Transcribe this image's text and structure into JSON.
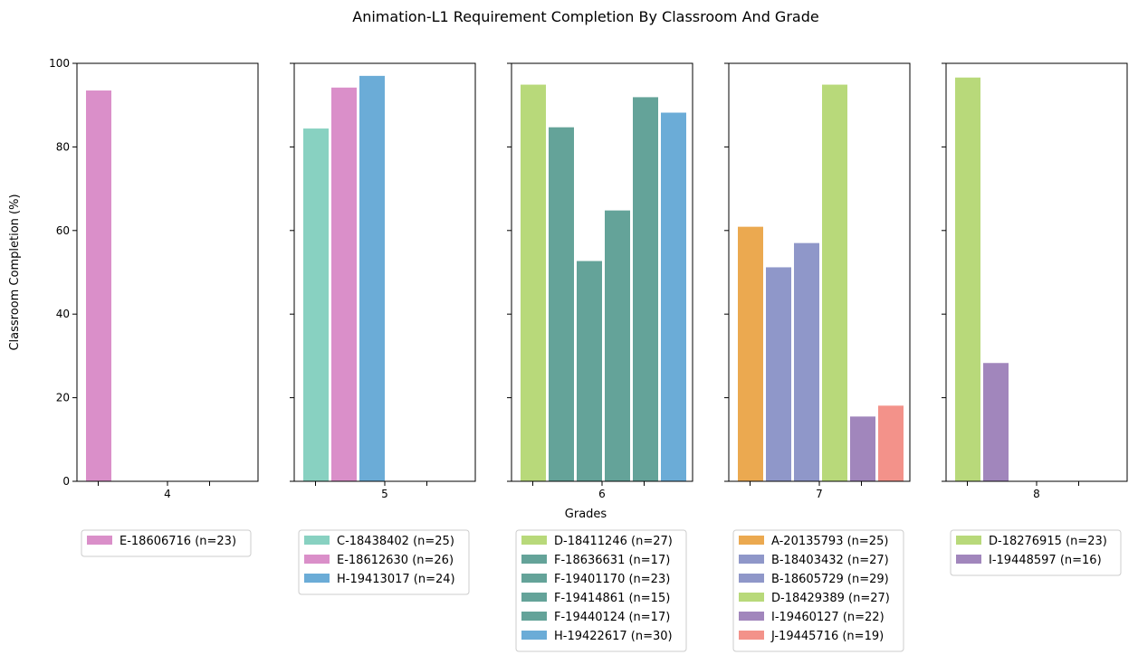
{
  "chart_data": {
    "type": "bar",
    "title": "Animation-L1 Requirement Completion By Classroom And Grade",
    "xlabel": "Grades",
    "ylabel": "Classroom Completion (%)",
    "ylim": [
      0,
      100
    ],
    "yticks": [
      0,
      20,
      40,
      60,
      80,
      100
    ],
    "grid": false,
    "legend_placement": "below each panel",
    "panels": [
      {
        "grade": "4",
        "bars": [
          {
            "name": "E-18606716 (n=23)",
            "value": 93.5,
            "color": "#DA8FC9"
          }
        ]
      },
      {
        "grade": "5",
        "bars": [
          {
            "name": "C-18438402 (n=25)",
            "value": 84.4,
            "color": "#88D1C1"
          },
          {
            "name": "E-18612630 (n=26)",
            "value": 94.2,
            "color": "#DA8FC9"
          },
          {
            "name": "H-19413017 (n=24)",
            "value": 97.0,
            "color": "#6BACD7"
          }
        ]
      },
      {
        "grade": "6",
        "bars": [
          {
            "name": "D-18411246 (n=27)",
            "value": 94.9,
            "color": "#B8D97A"
          },
          {
            "name": "F-18636631 (n=17)",
            "value": 84.7,
            "color": "#64A399"
          },
          {
            "name": "F-19401170 (n=23)",
            "value": 52.7,
            "color": "#64A399"
          },
          {
            "name": "F-19414861 (n=15)",
            "value": 64.8,
            "color": "#64A399"
          },
          {
            "name": "F-19440124 (n=17)",
            "value": 91.9,
            "color": "#64A399"
          },
          {
            "name": "H-19422617 (n=30)",
            "value": 88.2,
            "color": "#6BACD7"
          }
        ]
      },
      {
        "grade": "7",
        "bars": [
          {
            "name": "A-20135793 (n=25)",
            "value": 60.9,
            "color": "#EBA950"
          },
          {
            "name": "B-18403432 (n=27)",
            "value": 51.2,
            "color": "#8F97C9"
          },
          {
            "name": "B-18605729 (n=29)",
            "value": 57.0,
            "color": "#8F97C9"
          },
          {
            "name": "D-18429389 (n=27)",
            "value": 94.9,
            "color": "#B8D97A"
          },
          {
            "name": "I-19460127 (n=22)",
            "value": 15.5,
            "color": "#A186BC"
          },
          {
            "name": "J-19445716 (n=19)",
            "value": 18.1,
            "color": "#F3928A"
          }
        ]
      },
      {
        "grade": "8",
        "bars": [
          {
            "name": "D-18276915 (n=23)",
            "value": 96.6,
            "color": "#B8D97A"
          },
          {
            "name": "I-19448597 (n=16)",
            "value": 28.3,
            "color": "#A186BC"
          }
        ]
      }
    ]
  }
}
